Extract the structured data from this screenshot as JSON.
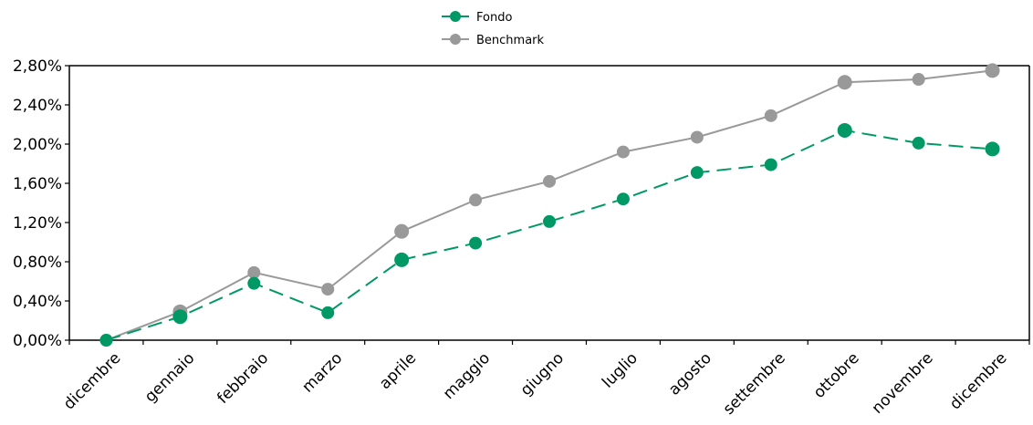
{
  "chart_data": {
    "type": "line",
    "categories": [
      "dicembre",
      "gennaio",
      "febbraio",
      "marzo",
      "aprile",
      "maggio",
      "giugno",
      "luglio",
      "agosto",
      "settembre",
      "ottobre",
      "novembre",
      "dicembre"
    ],
    "series": [
      {
        "name": "Fondo",
        "color": "#009966",
        "style": "dashed",
        "values": [
          0.0,
          0.24,
          0.58,
          0.28,
          0.82,
          0.99,
          1.21,
          1.44,
          1.71,
          1.79,
          2.14,
          2.01,
          1.95
        ]
      },
      {
        "name": "Benchmark",
        "color": "#999999",
        "style": "solid",
        "values": [
          0.0,
          0.29,
          0.69,
          0.52,
          1.11,
          1.43,
          1.62,
          1.92,
          2.07,
          2.29,
          2.63,
          2.66,
          2.75
        ]
      }
    ],
    "ylim": [
      0,
      2.8
    ],
    "yticks": [
      "0,00%",
      "0,40%",
      "0,80%",
      "1,20%",
      "1,60%",
      "2,00%",
      "2,40%",
      "2,80%"
    ],
    "ytick_values": [
      0,
      0.4,
      0.8,
      1.2,
      1.6,
      2.0,
      2.4,
      2.8
    ],
    "legend": "top-center",
    "grid": false
  }
}
